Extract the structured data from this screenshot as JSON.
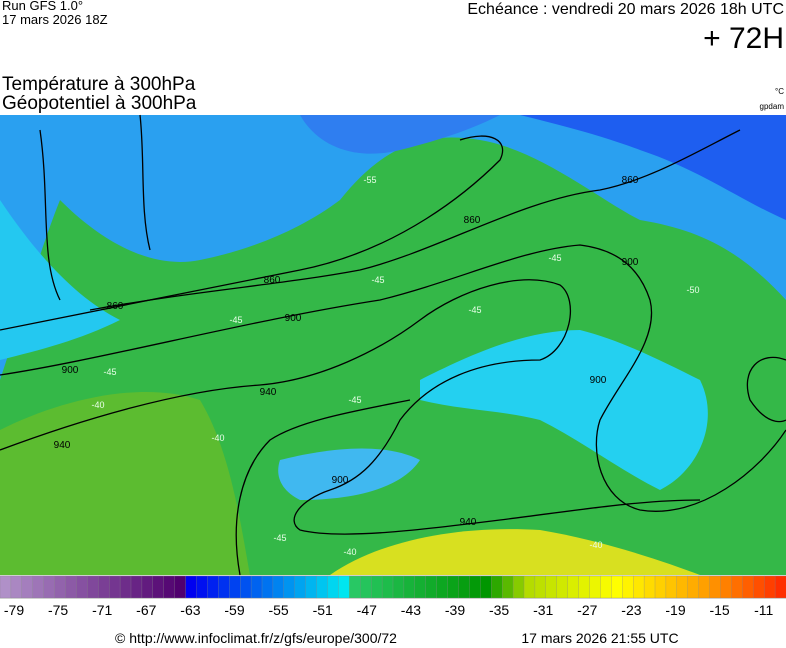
{
  "header": {
    "run": "Run GFS 1.0°",
    "run_date": "17 mars 2026 18Z",
    "valid": "Echéance : vendredi 20 mars 2026 18h UTC",
    "lead": "+ 72H"
  },
  "titles": {
    "line1": "Température à 300hPa",
    "line2": "Géopotentiel à 300hPa",
    "unit1": "°C",
    "unit2": "gpdam"
  },
  "map": {
    "geopotential_labels": [
      860,
      860,
      860,
      860,
      900,
      900,
      900,
      900,
      900,
      940,
      940,
      940
    ],
    "temperature_labels": [
      -55,
      -45,
      -45,
      -45,
      -45,
      -45,
      -40,
      -40,
      -45,
      -40,
      -40,
      -50,
      -45
    ]
  },
  "colorbar": {
    "labels": [
      -79,
      -75,
      -71,
      -67,
      -63,
      -59,
      -55,
      -51,
      -47,
      -43,
      -39,
      -35,
      -31,
      -27,
      -23,
      -19,
      -15,
      -11
    ]
  },
  "footer": {
    "source": "© http://www.infoclimat.fr/z/gfs/europe/300/72",
    "generated": "17 mars 2026 21:55 UTC"
  }
}
